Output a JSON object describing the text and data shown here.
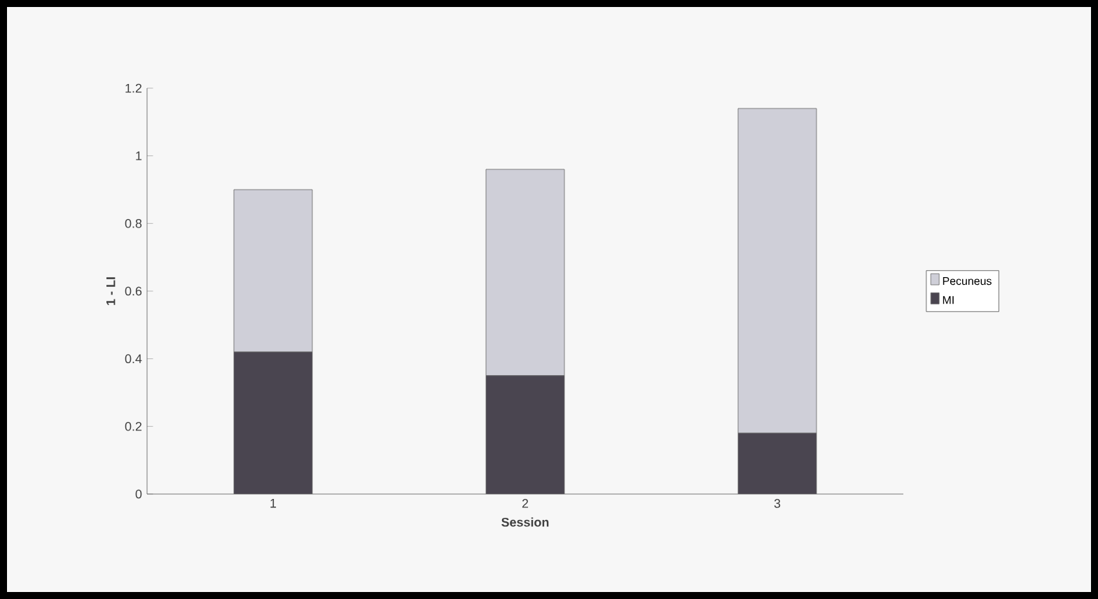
{
  "chart_data": {
    "type": "bar",
    "stacked": true,
    "xlabel": "Session",
    "ylabel": "1 - LI",
    "categories": [
      "1",
      "2",
      "3"
    ],
    "series": [
      {
        "name": "MI",
        "color": "#4a4550",
        "values": [
          0.42,
          0.35,
          0.18
        ]
      },
      {
        "name": "Pecuneus",
        "color": "#cfcfd8",
        "values": [
          0.48,
          0.61,
          0.96
        ]
      }
    ],
    "ylim": [
      0,
      1.2
    ],
    "yticks": [
      0,
      0.2,
      0.4,
      0.6,
      0.8,
      1,
      1.2
    ],
    "legend": "right",
    "grid": false
  }
}
